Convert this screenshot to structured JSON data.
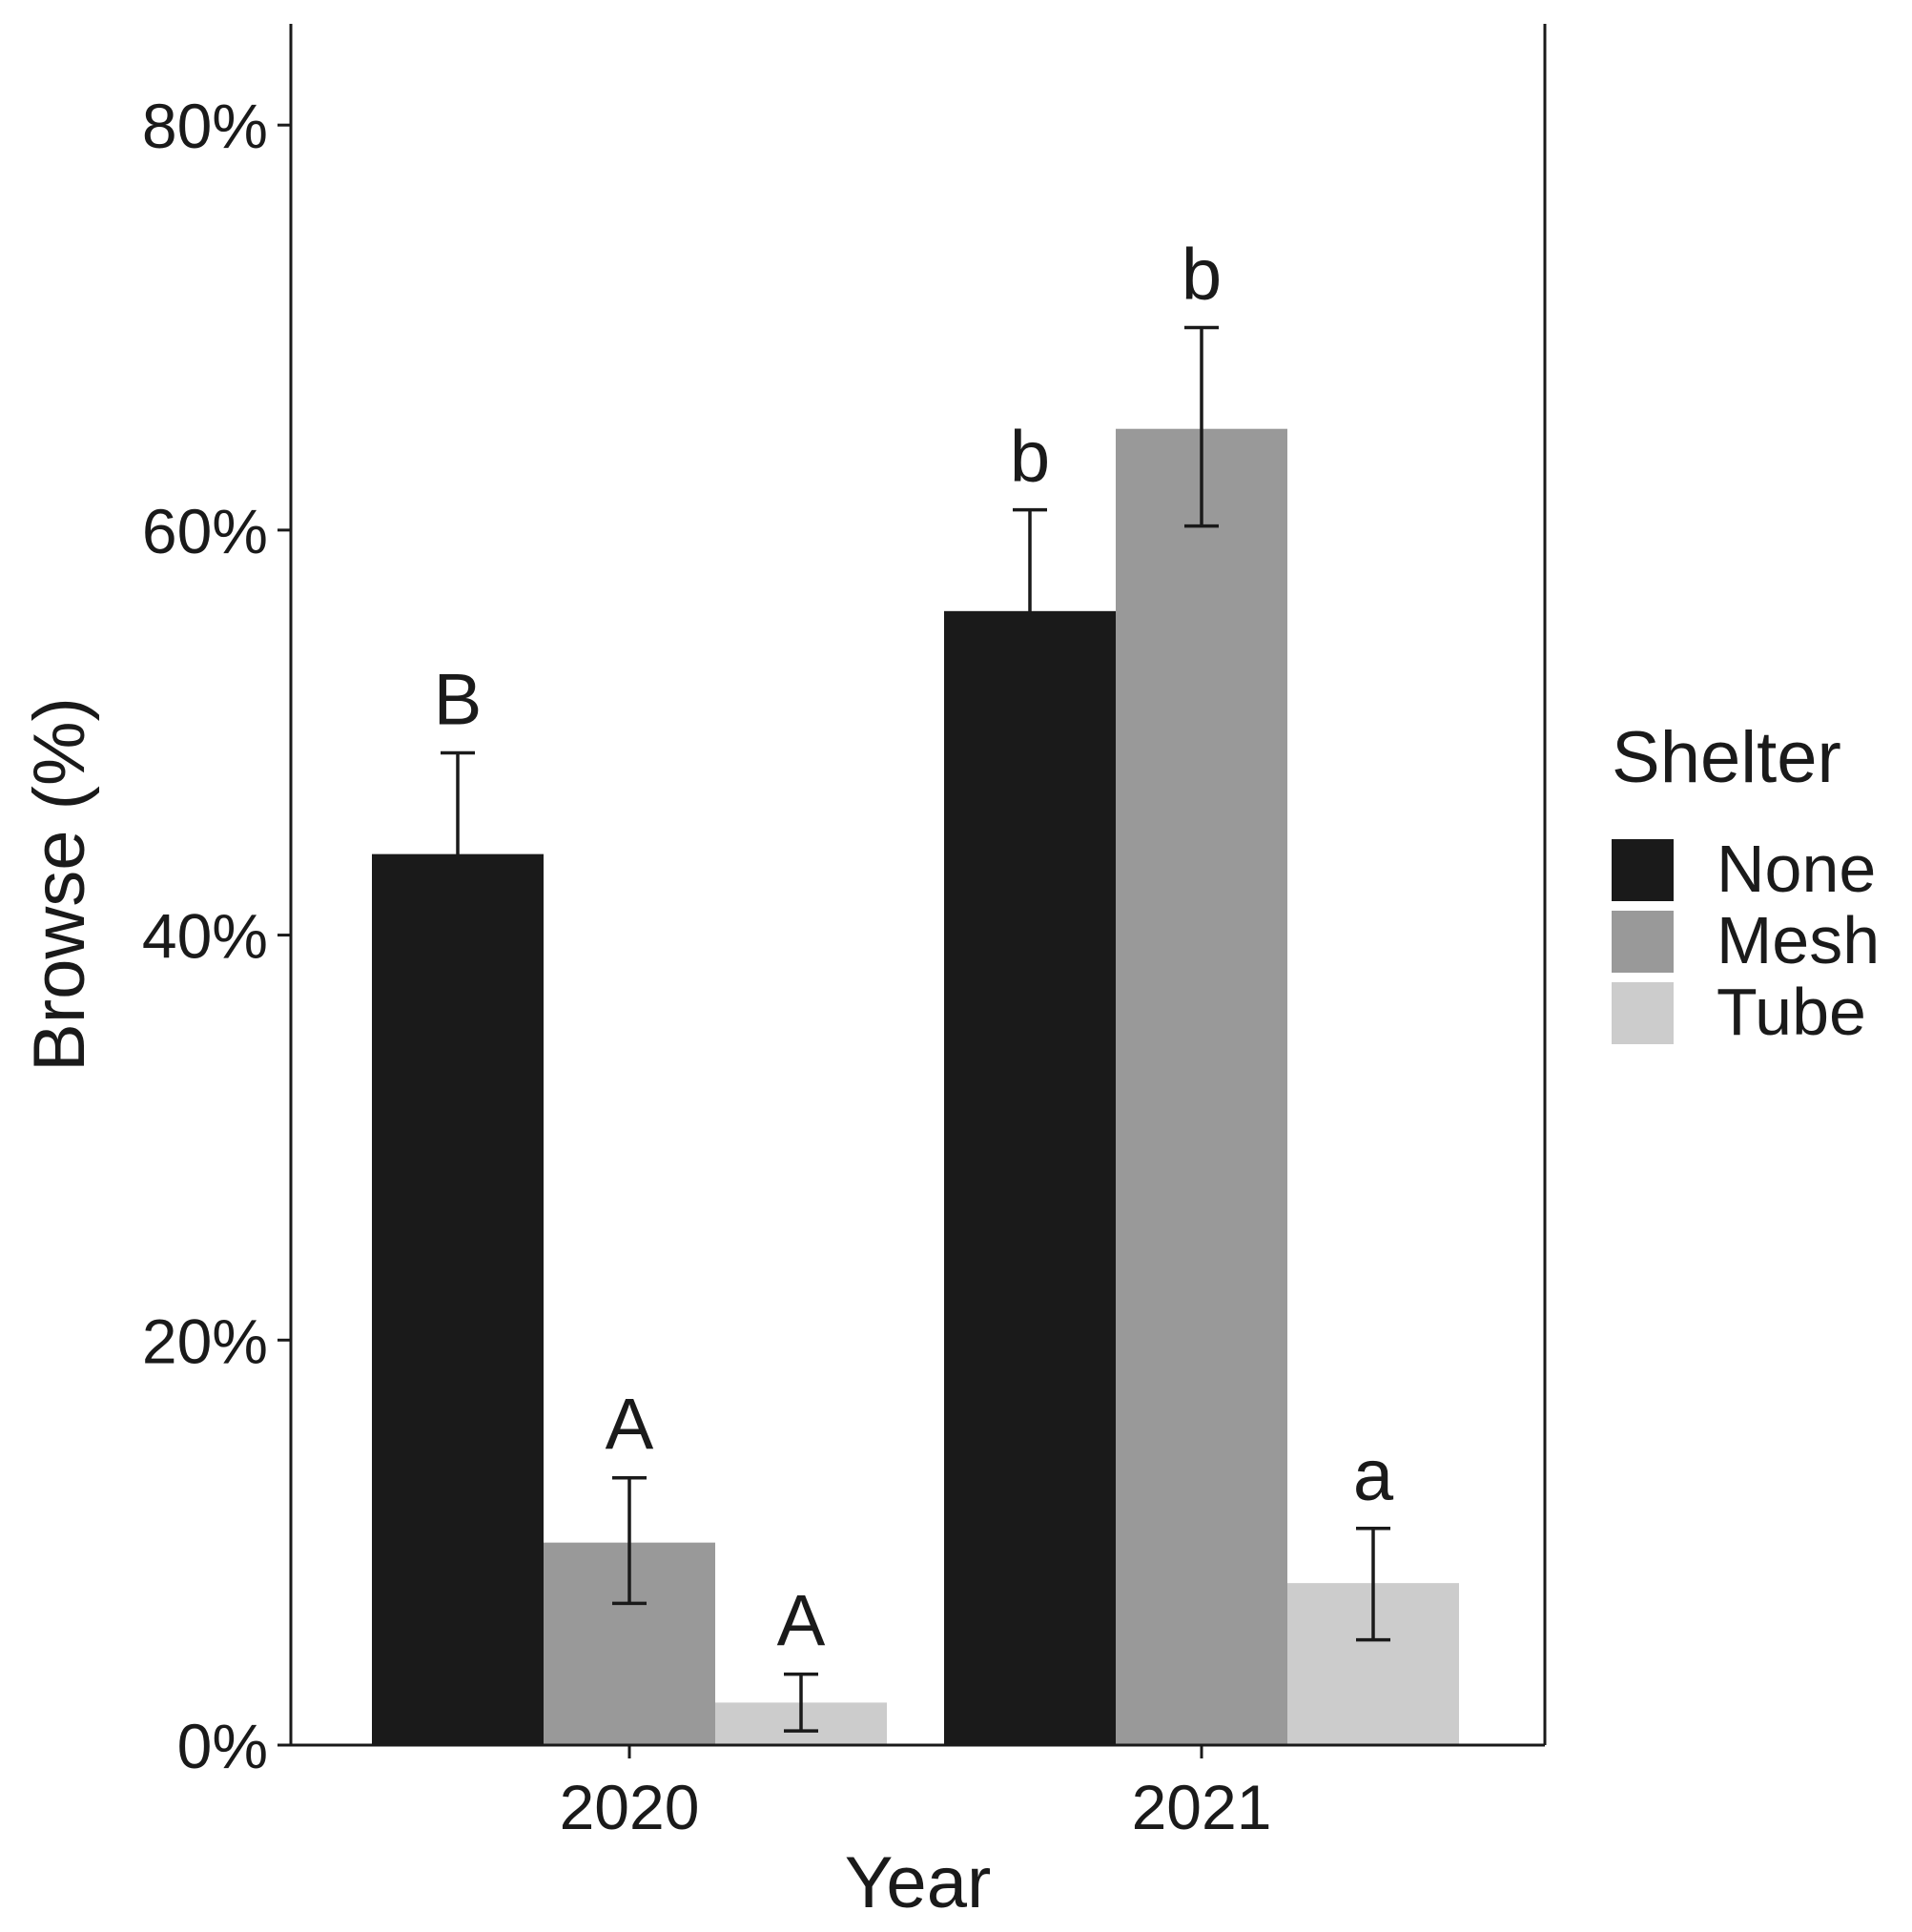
{
  "chart_data": {
    "type": "bar",
    "title": "",
    "xlabel": "Year",
    "ylabel": "Browse (%)",
    "ylim": [
      0,
      85
    ],
    "yticks": [
      0,
      20,
      40,
      60,
      80
    ],
    "ytick_labels": [
      "0%",
      "20%",
      "40%",
      "60%",
      "80%"
    ],
    "categories": [
      "2020",
      "2021"
    ],
    "legend": {
      "title": "Shelter",
      "position": "right"
    },
    "series": [
      {
        "name": "None",
        "color": "#1a1a1a",
        "values": [
          44,
          56
        ],
        "error": [
          [
            39.3,
            49
          ],
          [
            51,
            61
          ]
        ],
        "labels": [
          "B",
          "b"
        ]
      },
      {
        "name": "Mesh",
        "color": "#999999",
        "values": [
          10,
          65
        ],
        "error": [
          [
            7,
            13.2
          ],
          [
            60.2,
            70
          ]
        ],
        "labels": [
          "A",
          "b"
        ]
      },
      {
        "name": "Tube",
        "color": "#cccccc",
        "values": [
          2.1,
          8
        ],
        "error": [
          [
            0.7,
            3.5
          ],
          [
            5.2,
            10.7
          ]
        ],
        "labels": [
          "A",
          "a"
        ]
      }
    ],
    "grid": false
  }
}
